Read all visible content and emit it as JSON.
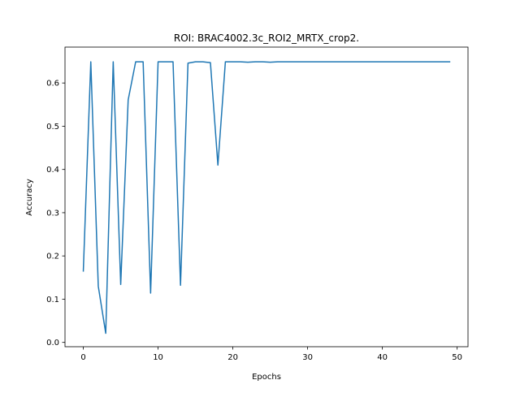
{
  "chart_data": {
    "type": "line",
    "title": "ROI: BRAC4002.3c_ROI2_MRTX_crop2.",
    "xlabel": "Epochs",
    "ylabel": "Accuracy",
    "xlim": [
      -2.45,
      51.45
    ],
    "ylim": [
      -0.01,
      0.683
    ],
    "xticks": [
      0,
      10,
      20,
      30,
      40,
      50
    ],
    "yticks": [
      0.0,
      0.1,
      0.2,
      0.3,
      0.4,
      0.5,
      0.6
    ],
    "xtick_labels": [
      "0",
      "10",
      "20",
      "30",
      "40",
      "50"
    ],
    "ytick_labels": [
      "0.0",
      "0.1",
      "0.2",
      "0.3",
      "0.4",
      "0.5",
      "0.6"
    ],
    "grid": false,
    "line_color": "#1f77b4",
    "series": [
      {
        "x": [
          0,
          1,
          2,
          3,
          4,
          5,
          6,
          7,
          8,
          9,
          10,
          11,
          12,
          13,
          14,
          15,
          16,
          17,
          18,
          19,
          20,
          21,
          22,
          23,
          24,
          25,
          26,
          27,
          28,
          29,
          30,
          31,
          32,
          33,
          34,
          35,
          36,
          37,
          38,
          39,
          40,
          41,
          42,
          43,
          44,
          45,
          46,
          47,
          48,
          49
        ],
        "values": [
          0.165,
          0.649,
          0.13,
          0.021,
          0.649,
          0.134,
          0.561,
          0.649,
          0.649,
          0.114,
          0.649,
          0.649,
          0.649,
          0.132,
          0.646,
          0.649,
          0.649,
          0.647,
          0.41,
          0.649,
          0.649,
          0.649,
          0.648,
          0.649,
          0.649,
          0.648,
          0.649,
          0.649,
          0.649,
          0.649,
          0.649,
          0.649,
          0.649,
          0.649,
          0.649,
          0.649,
          0.649,
          0.649,
          0.649,
          0.649,
          0.649,
          0.649,
          0.649,
          0.649,
          0.649,
          0.649,
          0.649,
          0.649,
          0.649,
          0.649
        ]
      }
    ]
  }
}
